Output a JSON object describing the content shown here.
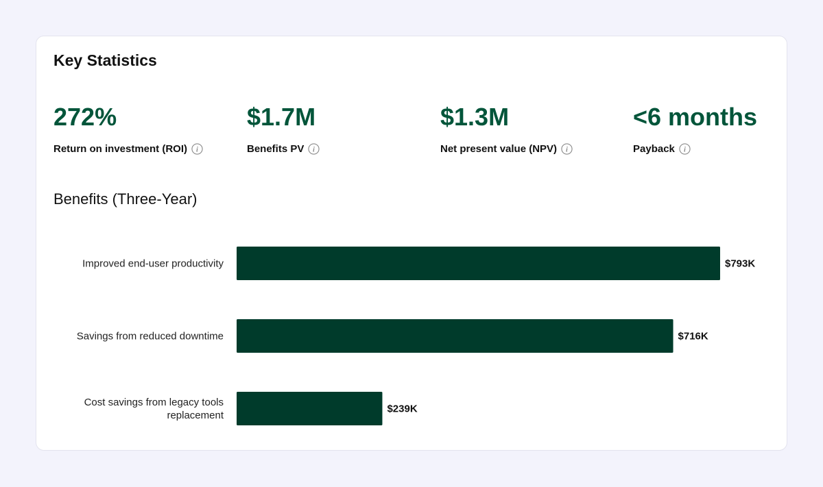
{
  "card": {
    "title": "Key Statistics",
    "section_title": "Benefits (Three-Year)"
  },
  "colors": {
    "accent": "#02553a",
    "bar": "#003b2b",
    "background": "#f3f3fc"
  },
  "stats": [
    {
      "value": "272%",
      "label": "Return on investment (ROI)",
      "icon": "info-icon"
    },
    {
      "value": "$1.7M",
      "label": "Benefits PV",
      "icon": "info-icon"
    },
    {
      "value": "$1.3M",
      "label": "Net present value (NPV)",
      "icon": "info-icon"
    },
    {
      "value": "<6 months",
      "label": "Payback",
      "icon": "info-icon"
    }
  ],
  "chart_data": {
    "type": "bar",
    "orientation": "horizontal",
    "title": "Benefits (Three-Year)",
    "categories": [
      [
        "Improved end-user productivity"
      ],
      [
        "Savings from reduced downtime"
      ],
      [
        "Cost savings from legacy tools",
        "replacement"
      ]
    ],
    "values": [
      793,
      716,
      239
    ],
    "value_labels": [
      "$793K",
      "$716K",
      "$239K"
    ],
    "unit": "$K",
    "xlim": [
      0,
      793
    ],
    "grid": false,
    "legend": "none"
  }
}
